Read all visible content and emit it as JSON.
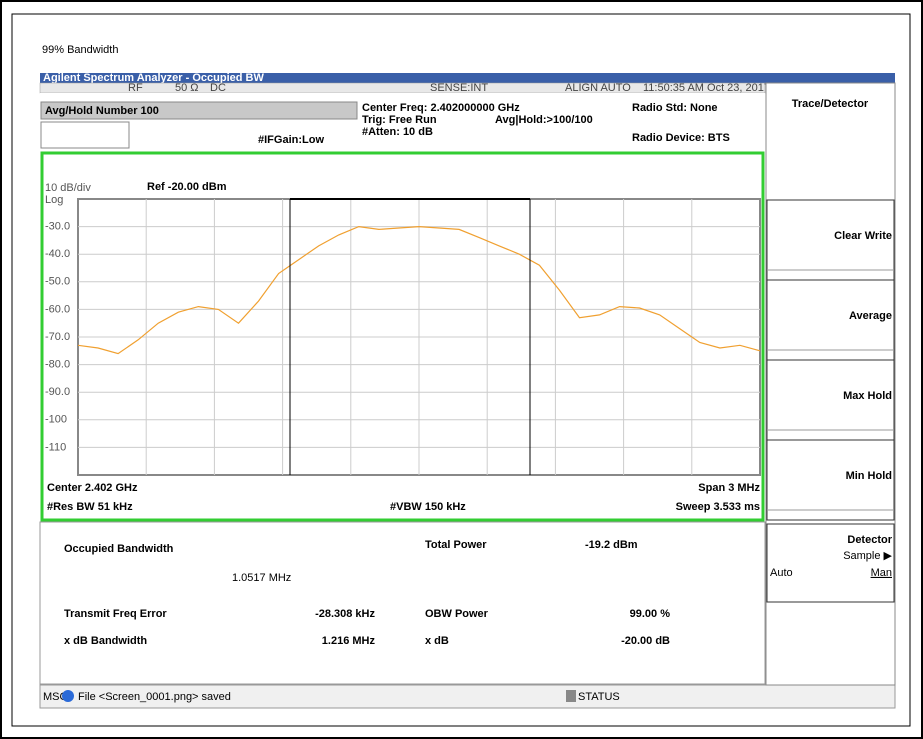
{
  "title": "99% Bandwidth",
  "window_title": "Agilent Spectrum Analyzer - Occupied BW",
  "status_row": {
    "rf": "RF",
    "impedance": "50 Ω",
    "coupling": "DC",
    "sense": "SENSE:INT",
    "align": "ALIGN AUTO",
    "time": "11:50:35 AM Oct 23, 2017"
  },
  "settings": {
    "avg_hold": "Avg/Hold Number 100",
    "if_gain": "#IFGain:Low",
    "center_freq": "Center Freq: 2.402000000 GHz",
    "trig": "Trig: Free Run",
    "avg_hold_count": "Avg|Hold:>100/100",
    "atten": "#Atten: 10 dB",
    "radio_std": "Radio Std: None",
    "radio_device": "Radio Device: BTS"
  },
  "plot_labels": {
    "scale": "10 dB/div",
    "ref": "Ref -20.00 dBm",
    "log": "Log",
    "center": "Center 2.402 GHz",
    "span": "Span 3 MHz",
    "res_bw": "#Res BW 51 kHz",
    "vbw": "#VBW 150 kHz",
    "sweep": "Sweep 3.533 ms"
  },
  "chart_data": {
    "type": "line",
    "color": "#f0a030",
    "ylim": [
      -120,
      -20
    ],
    "yticks": [
      {
        "value": -30,
        "label": "-30.0"
      },
      {
        "value": -40,
        "label": "-40.0"
      },
      {
        "value": -50,
        "label": "-50.0"
      },
      {
        "value": -60,
        "label": "-60.0"
      },
      {
        "value": -70,
        "label": "-70.0"
      },
      {
        "value": -80,
        "label": "-80.0"
      },
      {
        "value": -90,
        "label": "-90.0"
      },
      -100,
      -110
    ],
    "values": [
      -73,
      -74,
      -76,
      -71,
      -65,
      -61,
      -59,
      -60,
      -65,
      -57,
      -47,
      -42,
      -37,
      -33,
      -30,
      -31,
      -30.5,
      -30,
      -30.5,
      -31,
      -34,
      -37,
      -40,
      -44,
      -53,
      -63,
      -62,
      -59,
      -59.5,
      -62,
      -67,
      -72,
      -74,
      -73,
      -75
    ]
  },
  "results": {
    "obw_label": "Occupied Bandwidth",
    "obw_value": "1.0517 MHz",
    "total_power_label": "Total Power",
    "total_power_value": "-19.2 dBm",
    "freq_error_label": "Transmit Freq Error",
    "freq_error_value": "-28.308 kHz",
    "obw_power_label": "OBW Power",
    "obw_power_value": "99.00 %",
    "xdb_bw_label": "x dB Bandwidth",
    "xdb_bw_value": "1.216 MHz",
    "xdb_label": "x dB",
    "xdb_value": "-20.00 dB"
  },
  "status_bar": {
    "msg": "MSG",
    "message": "File <Screen_0001.png> saved",
    "status": "STATUS"
  },
  "softkeys": {
    "menu": "Trace/Detector",
    "keys": [
      "Clear Write",
      "Average",
      "Max Hold",
      "Min Hold"
    ],
    "detector": "Detector",
    "detector_value": "Sample ▶",
    "auto": "Auto",
    "man": "Man"
  }
}
